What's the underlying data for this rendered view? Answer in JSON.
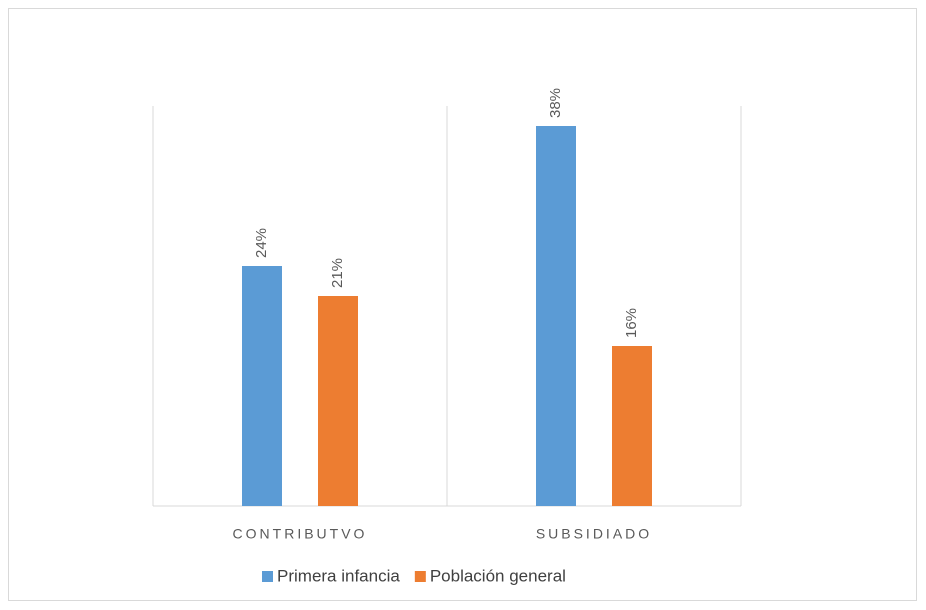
{
  "chart_data": {
    "type": "bar",
    "categories": [
      "CONTRIBUTVO",
      "SUBSIDIADO"
    ],
    "series": [
      {
        "name": "Primera infancia",
        "color": "#5b9bd5",
        "values": [
          24,
          38
        ],
        "value_labels": [
          "24%",
          "38%"
        ]
      },
      {
        "name": "Población general",
        "color": "#ed7d31",
        "values": [
          21,
          16
        ],
        "value_labels": [
          "21%",
          "16%"
        ]
      }
    ],
    "ylim": [
      0,
      40
    ],
    "legend": "bottom"
  }
}
